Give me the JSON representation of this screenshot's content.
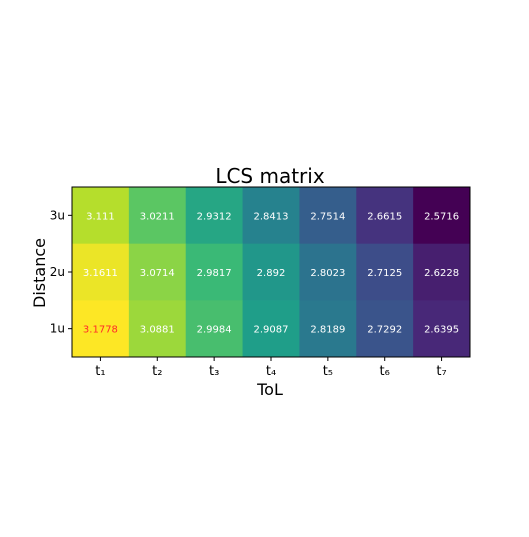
{
  "chart_data": {
    "type": "heatmap",
    "title": "LCS matrix",
    "xlabel": "ToL",
    "ylabel": "Distance",
    "x_categories": [
      "t₁",
      "t₂",
      "t₃",
      "t₄",
      "t₅",
      "t₆",
      "t₇"
    ],
    "y_categories": [
      "3u",
      "2u",
      "1u"
    ],
    "values": [
      [
        3.111,
        3.0211,
        2.9312,
        2.8413,
        2.7514,
        2.6615,
        2.5716
      ],
      [
        3.1611,
        3.0714,
        2.9817,
        2.892,
        2.8023,
        2.7125,
        2.6228
      ],
      [
        3.1778,
        3.0881,
        2.9984,
        2.9087,
        2.8189,
        2.7292,
        2.6395
      ]
    ],
    "value_labels": [
      [
        "3.111",
        "3.0211",
        "2.9312",
        "2.8413",
        "2.7514",
        "2.6615",
        "2.5716"
      ],
      [
        "3.1611",
        "3.0714",
        "2.9817",
        "2.892",
        "2.8023",
        "2.7125",
        "2.6228"
      ],
      [
        "3.1778",
        "3.0881",
        "2.9984",
        "2.9087",
        "2.8189",
        "2.7292",
        "2.6395"
      ]
    ],
    "colormap": "viridis",
    "highlight": {
      "row": 2,
      "col": 0,
      "color": "#ff2a2a"
    },
    "label_color": "#ffffff",
    "grid": false,
    "legend": "none"
  }
}
